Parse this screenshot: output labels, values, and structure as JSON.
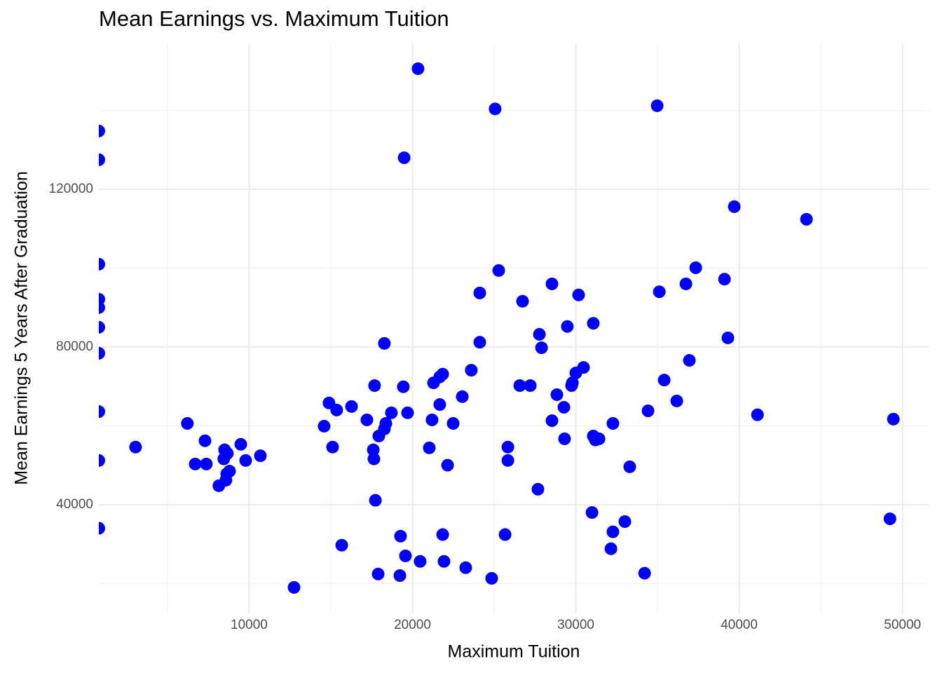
{
  "chart_data": {
    "type": "scatter",
    "title": "Mean Earnings vs. Maximum Tuition",
    "x_label": "Maximum Tuition",
    "y_label": "Mean Earnings 5 Years After Graduation",
    "color": "#0000ff",
    "grid": true,
    "xlim": [
      800,
      51600
    ],
    "xticks": [
      10000,
      20000,
      30000,
      40000,
      50000
    ],
    "ylim": [
      12400,
      157000
    ],
    "yticks": [
      40000,
      80000,
      120000
    ],
    "x": [
      800,
      800,
      800,
      800,
      800,
      800,
      800,
      800,
      800,
      800,
      3050,
      6220,
      6700,
      7300,
      7380,
      8150,
      8450,
      8500,
      8630,
      8670,
      8580,
      8800,
      9490,
      9790,
      10690,
      12750,
      14590,
      14890,
      15110,
      15360,
      15670,
      16270,
      17210,
      17600,
      17640,
      17680,
      17730,
      17900,
      17940,
      18280,
      18370,
      18280,
      18710,
      19270,
      19230,
      19440,
      19490,
      19570,
      19700,
      20340,
      20470,
      21030,
      21200,
      21290,
      21670,
      21670,
      21850,
      21850,
      21930,
      22150,
      22490,
      23050,
      23260,
      23600,
      24120,
      24120,
      24850,
      25060,
      25280,
      25670,
      25840,
      25840,
      26570,
      26740,
      27210,
      27680,
      27770,
      27900,
      28540,
      28540,
      28840,
      29270,
      29310,
      29480,
      29740,
      29790,
      30000,
      30170,
      30470,
      30990,
      31070,
      31070,
      31200,
      31420,
      32150,
      32270,
      32270,
      33000,
      33300,
      34210,
      34420,
      34980,
      35110,
      35410,
      36180,
      36740,
      36950,
      37340,
      39100,
      39310,
      39700,
      41120,
      44120,
      49230,
      49440
    ],
    "values": [
      134800,
      127500,
      101000,
      92100,
      90000,
      85000,
      78400,
      63600,
      51200,
      34000,
      54600,
      60600,
      50300,
      56200,
      50300,
      44800,
      51600,
      53900,
      47800,
      53000,
      46200,
      48500,
      55300,
      51200,
      52400,
      19000,
      59900,
      65800,
      54600,
      64000,
      29700,
      64900,
      61500,
      53900,
      51600,
      70200,
      41100,
      22400,
      57400,
      59200,
      60600,
      80900,
      63300,
      32000,
      22000,
      69900,
      128000,
      27000,
      63300,
      150600,
      25600,
      54400,
      61500,
      70900,
      65400,
      72400,
      32400,
      73100,
      25600,
      50000,
      60600,
      67400,
      24000,
      74100,
      93700,
      81200,
      21300,
      140400,
      99400,
      32400,
      54600,
      51200,
      70200,
      91600,
      70200,
      43900,
      83200,
      79800,
      61300,
      96000,
      67900,
      64700,
      56700,
      85200,
      70200,
      70900,
      73400,
      93200,
      74800,
      38000,
      57400,
      86000,
      56400,
      56700,
      28800,
      33100,
      60600,
      35700,
      49600,
      22600,
      63800,
      141200,
      94000,
      71600,
      66300,
      96000,
      76600,
      100100,
      97200,
      82300,
      115600,
      62800,
      112400,
      36400,
      61700
    ]
  }
}
